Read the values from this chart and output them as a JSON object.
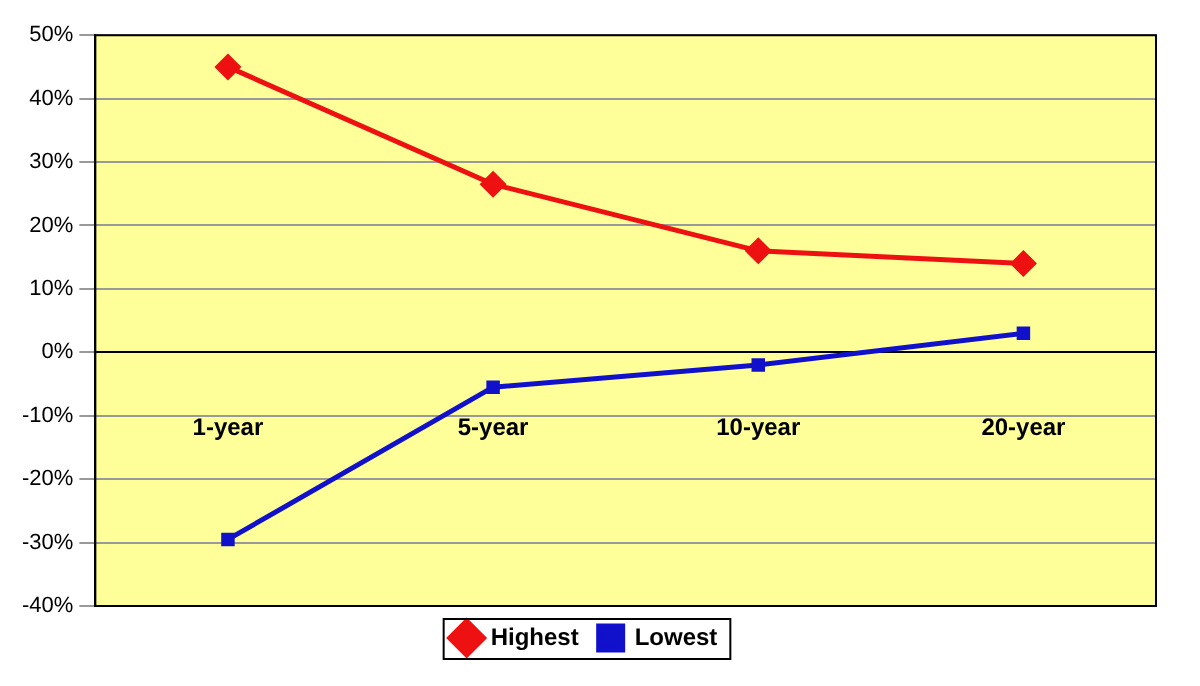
{
  "chart_data": {
    "type": "line",
    "categories": [
      "1-year",
      "5-year",
      "10-year",
      "20-year"
    ],
    "series": [
      {
        "name": "Highest",
        "color": "#ee1111",
        "values": [
          45,
          26.5,
          16,
          14
        ],
        "marker": "diamond"
      },
      {
        "name": "Lowest",
        "color": "#1111cc",
        "values": [
          -29.5,
          -5.5,
          -2,
          3
        ],
        "marker": "square"
      }
    ],
    "ylim": [
      -40,
      50
    ],
    "yticks": [
      {
        "value": -40,
        "label": "-40%"
      },
      {
        "value": -30,
        "label": "-30%"
      },
      {
        "value": -20,
        "label": "-20%"
      },
      {
        "value": -10,
        "label": "-10%"
      },
      {
        "value": 0,
        "label": "0%"
      },
      {
        "value": 10,
        "label": "10%"
      },
      {
        "value": 20,
        "label": "20%"
      },
      {
        "value": 30,
        "label": "30%"
      },
      {
        "value": 40,
        "label": "40%"
      },
      {
        "value": 50,
        "label": "50%"
      }
    ],
    "grid": "y",
    "legend": "bottom"
  }
}
